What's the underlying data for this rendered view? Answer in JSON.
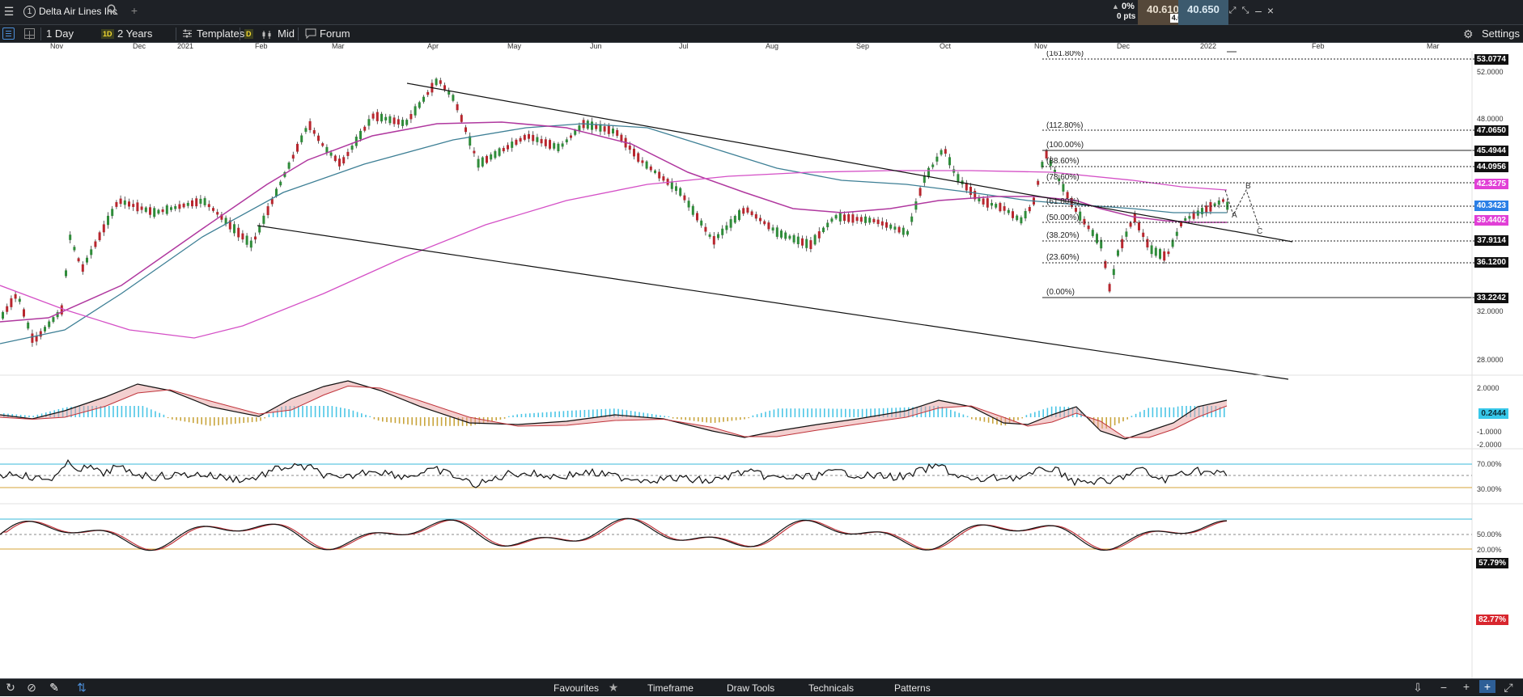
{
  "header": {
    "menu_icon": "hamburger-icon",
    "instrument_index": "1",
    "instrument_name": "Delta Air Lines Inc",
    "search_icon": "search-icon",
    "add_icon": "plus-icon",
    "change_pct": "0%",
    "change_pts": "0 pts",
    "sell_price": "40.610",
    "spread": "4.0",
    "buy_price": "40.650"
  },
  "toolbar": {
    "interval_label": "1 Day",
    "period_badge": "1D",
    "period_label": "2 Years",
    "templates_label": "Templates",
    "price_type_badge": "D",
    "price_type_label": "Mid",
    "forum_label": "Forum",
    "settings_label": "Settings"
  },
  "time_axis": {
    "months": [
      "Nov",
      "Dec",
      "2021",
      "Feb",
      "Mar",
      "Apr",
      "May",
      "Jun",
      "Jul",
      "Aug",
      "Sep",
      "Oct",
      "Nov",
      "Dec",
      "2022",
      "Feb",
      "Mar"
    ]
  },
  "price_axis": {
    "ticks": [
      "52.0000",
      "48.0000",
      "32.0000",
      "28.0000"
    ],
    "tags": [
      {
        "label": "53.0774",
        "kind": "dark"
      },
      {
        "label": "47.0650",
        "kind": "dark"
      },
      {
        "label": "45.4944",
        "kind": "dark"
      },
      {
        "label": "44.0956",
        "kind": "dark"
      },
      {
        "label": "42.3275",
        "kind": "magenta"
      },
      {
        "label": "40.3423",
        "kind": "blue"
      },
      {
        "label": "39.4402",
        "kind": "magenta"
      },
      {
        "label": "37.9114",
        "kind": "dark"
      },
      {
        "label": "36.1200",
        "kind": "dark"
      },
      {
        "label": "33.2242",
        "kind": "dark"
      }
    ]
  },
  "fibonacci": {
    "levels": [
      "(161.80%)",
      "(112.80%)",
      "(100.00%)",
      "(88.60%)",
      "(78.60%)",
      "(61.80%)",
      "(50.00%)",
      "(38.20%)",
      "(23.60%)",
      "(0.00%)"
    ]
  },
  "wave_labels": [
    "B",
    "A",
    "C"
  ],
  "macd": {
    "ticks": [
      "2.0000",
      "-1.0000",
      "-2.0000"
    ],
    "value": "0.2444"
  },
  "rsi": {
    "ticks": [
      "70.00%",
      "30.00%"
    ],
    "value": "57.79%"
  },
  "stoch": {
    "ticks": [
      "50.00%",
      "20.00%"
    ],
    "value": "82.77%"
  },
  "colors": {
    "ma_magenta": "#b0389f",
    "ma_teal": "#3d7f95",
    "candle_up": "#2f8c3a",
    "candle_down": "#b8262e",
    "macd_pos": "#4cc6e6",
    "macd_neg": "#c9a53d",
    "tag_magenta": "#e13fd6",
    "tag_blue": "#2a7fe6",
    "tag_cyan": "#38c8ea",
    "tag_red": "#d8262e"
  },
  "bottombar": {
    "favourites_label": "Favourites",
    "timeframe_label": "Timeframe",
    "draw_tools_label": "Draw Tools",
    "technicals_label": "Technicals",
    "patterns_label": "Patterns"
  }
}
